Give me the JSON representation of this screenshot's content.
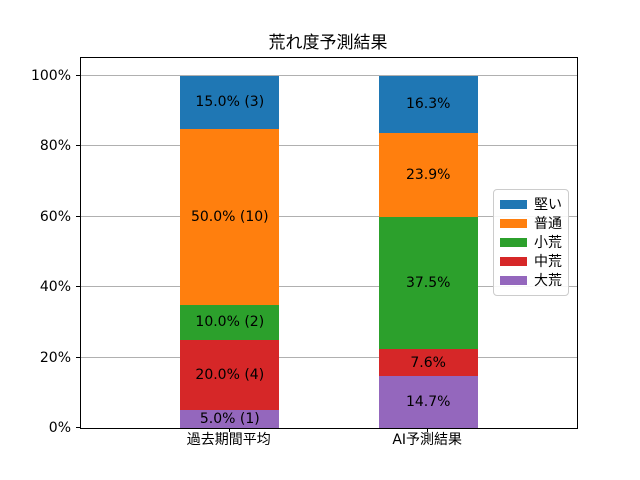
{
  "chart_data": {
    "type": "bar",
    "subtype": "stacked_percent",
    "title": "荒れ度予測結果",
    "categories": [
      "過去期間平均",
      "AI予測結果"
    ],
    "series": [
      {
        "name": "大荒",
        "color": "#9467bd",
        "values": [
          5.0,
          14.7
        ],
        "labels": [
          "5.0% (1)",
          "14.7%"
        ]
      },
      {
        "name": "中荒",
        "color": "#d62728",
        "values": [
          20.0,
          7.6
        ],
        "labels": [
          "20.0% (4)",
          "7.6%"
        ]
      },
      {
        "name": "小荒",
        "color": "#2ca02c",
        "values": [
          10.0,
          37.5
        ],
        "labels": [
          "10.0% (2)",
          "37.5%"
        ]
      },
      {
        "name": "普通",
        "color": "#ff7f0e",
        "values": [
          50.0,
          23.9
        ],
        "labels": [
          "50.0% (10)",
          "23.9%"
        ]
      },
      {
        "name": "堅い",
        "color": "#1f77b4",
        "values": [
          15.0,
          16.3
        ],
        "labels": [
          "15.0% (3)",
          "16.3%"
        ]
      }
    ],
    "y_ticks": [
      {
        "value": 0,
        "label": "0%"
      },
      {
        "value": 20,
        "label": "20%"
      },
      {
        "value": 40,
        "label": "40%"
      },
      {
        "value": 60,
        "label": "60%"
      },
      {
        "value": 80,
        "label": "80%"
      },
      {
        "value": 100,
        "label": "100%"
      }
    ],
    "ylim": [
      0,
      105
    ],
    "grid": true,
    "grid_color": "#b0b0b0",
    "axis_color": "#000000",
    "legend": {
      "position": "center right",
      "entries": [
        "堅い",
        "普通",
        "小荒",
        "中荒",
        "大荒"
      ]
    }
  }
}
